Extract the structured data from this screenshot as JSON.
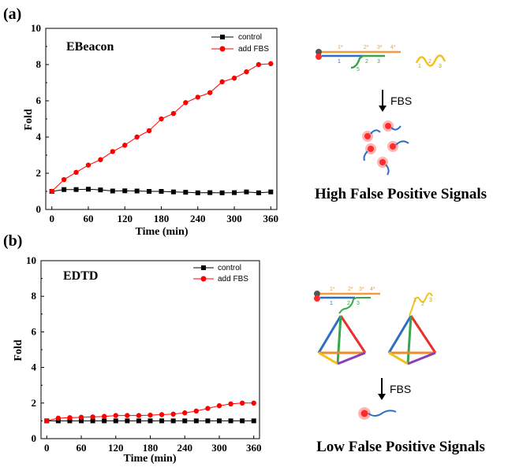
{
  "panel_labels": [
    "(a)",
    "(b)"
  ],
  "chart_data": [
    {
      "type": "line",
      "title": "EBeacon",
      "xlabel": "Time (min)",
      "ylabel": "Fold",
      "xlim": [
        -10,
        370
      ],
      "ylim": [
        0,
        10
      ],
      "xticks": [
        0,
        60,
        120,
        180,
        240,
        300,
        360
      ],
      "yticks": [
        0,
        2,
        4,
        6,
        8,
        10
      ],
      "legend_position": "top-right",
      "series": [
        {
          "name": "control",
          "color": "#000000",
          "marker": "square",
          "x": [
            0,
            20,
            40,
            60,
            80,
            100,
            120,
            140,
            160,
            180,
            200,
            220,
            240,
            260,
            280,
            300,
            320,
            340,
            360
          ],
          "y": [
            1.0,
            1.1,
            1.1,
            1.12,
            1.08,
            1.02,
            1.03,
            1.02,
            1.0,
            1.0,
            0.97,
            0.95,
            0.92,
            0.93,
            0.92,
            0.93,
            0.97,
            0.92,
            0.97
          ]
        },
        {
          "name": "add FBS",
          "color": "#ff0000",
          "marker": "circle",
          "x": [
            0,
            20,
            40,
            60,
            80,
            100,
            120,
            140,
            160,
            180,
            200,
            220,
            240,
            260,
            280,
            300,
            320,
            340,
            360
          ],
          "y": [
            1.0,
            1.65,
            2.05,
            2.45,
            2.75,
            3.2,
            3.55,
            4.0,
            4.35,
            5.0,
            5.3,
            5.9,
            6.2,
            6.45,
            7.05,
            7.25,
            7.6,
            8.0,
            8.05
          ]
        }
      ]
    },
    {
      "type": "line",
      "title": "EDTD",
      "xlabel": "Time (min)",
      "ylabel": "Fold",
      "xlim": [
        -10,
        370
      ],
      "ylim": [
        0,
        10
      ],
      "xticks": [
        0,
        60,
        120,
        180,
        240,
        300,
        360
      ],
      "yticks": [
        0,
        2,
        4,
        6,
        8,
        10
      ],
      "legend_position": "top-right",
      "series": [
        {
          "name": "control",
          "color": "#000000",
          "marker": "square",
          "x": [
            0,
            20,
            40,
            60,
            80,
            100,
            120,
            140,
            160,
            180,
            200,
            220,
            240,
            260,
            280,
            300,
            320,
            340,
            360
          ],
          "y": [
            1.0,
            1.0,
            1.0,
            1.0,
            1.0,
            1.0,
            1.0,
            1.0,
            1.0,
            1.0,
            1.0,
            1.0,
            1.0,
            1.0,
            1.0,
            1.0,
            1.0,
            1.0,
            1.0
          ]
        },
        {
          "name": "add FBS",
          "color": "#ff0000",
          "marker": "circle",
          "x": [
            0,
            20,
            40,
            60,
            80,
            100,
            120,
            140,
            160,
            180,
            200,
            220,
            240,
            260,
            280,
            300,
            320,
            340,
            360
          ],
          "y": [
            1.0,
            1.15,
            1.18,
            1.2,
            1.22,
            1.25,
            1.3,
            1.3,
            1.3,
            1.32,
            1.35,
            1.38,
            1.45,
            1.55,
            1.7,
            1.85,
            1.95,
            2.0,
            2.0
          ]
        }
      ]
    }
  ],
  "schematic_a": {
    "strand_labels_top": [
      "1*",
      "2*",
      "3*",
      "4*"
    ],
    "strand_labels_bottom": [
      "1",
      "5",
      "2",
      "3"
    ],
    "fragment_labels": [
      "1",
      "2",
      "3"
    ],
    "arrow_label": "FBS",
    "caption": "High False Positive Signals"
  },
  "schematic_b": {
    "strand_labels_top": [
      "1*",
      "2*",
      "3*",
      "4*"
    ],
    "strand_labels_bottom": [
      "1",
      "2",
      "3"
    ],
    "fragment_labels": [
      "1",
      "2",
      "3"
    ],
    "arrow_label": "FBS",
    "caption": "Low False Positive Signals"
  },
  "colors": {
    "control": "#000000",
    "fbs": "#ff0000",
    "orange_strand": "#f39a3d",
    "blue_strand": "#2e6fc4",
    "green_strand": "#3aa64a",
    "yellow_strand": "#f2c21b",
    "fluorophore": "#ff2a2a",
    "quencher": "#555555"
  }
}
